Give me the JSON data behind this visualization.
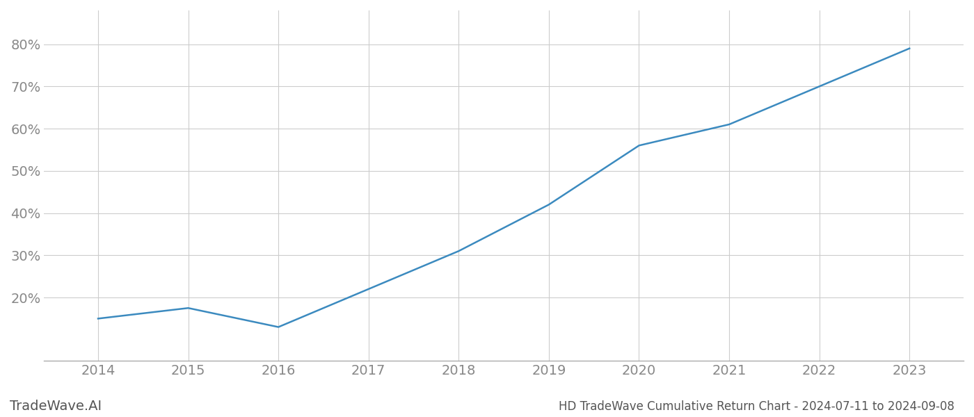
{
  "x_years": [
    2014,
    2015,
    2016,
    2017,
    2018,
    2019,
    2020,
    2021,
    2022,
    2023
  ],
  "y_values": [
    0.15,
    0.175,
    0.13,
    0.22,
    0.31,
    0.42,
    0.56,
    0.61,
    0.7,
    0.79
  ],
  "line_color": "#3b8abf",
  "line_width": 1.8,
  "background_color": "#ffffff",
  "grid_color": "#cccccc",
  "title": "HD TradeWave Cumulative Return Chart - 2024-07-11 to 2024-09-08",
  "watermark": "TradeWave.AI",
  "xlim": [
    2013.4,
    2023.6
  ],
  "ylim": [
    0.05,
    0.88
  ],
  "yticks": [
    0.2,
    0.3,
    0.4,
    0.5,
    0.6,
    0.7,
    0.8
  ],
  "xticks": [
    2014,
    2015,
    2016,
    2017,
    2018,
    2019,
    2020,
    2021,
    2022,
    2023
  ],
  "tick_label_color": "#888888",
  "title_color": "#555555",
  "watermark_color": "#555555",
  "title_fontsize": 12,
  "tick_fontsize": 14,
  "watermark_fontsize": 14
}
